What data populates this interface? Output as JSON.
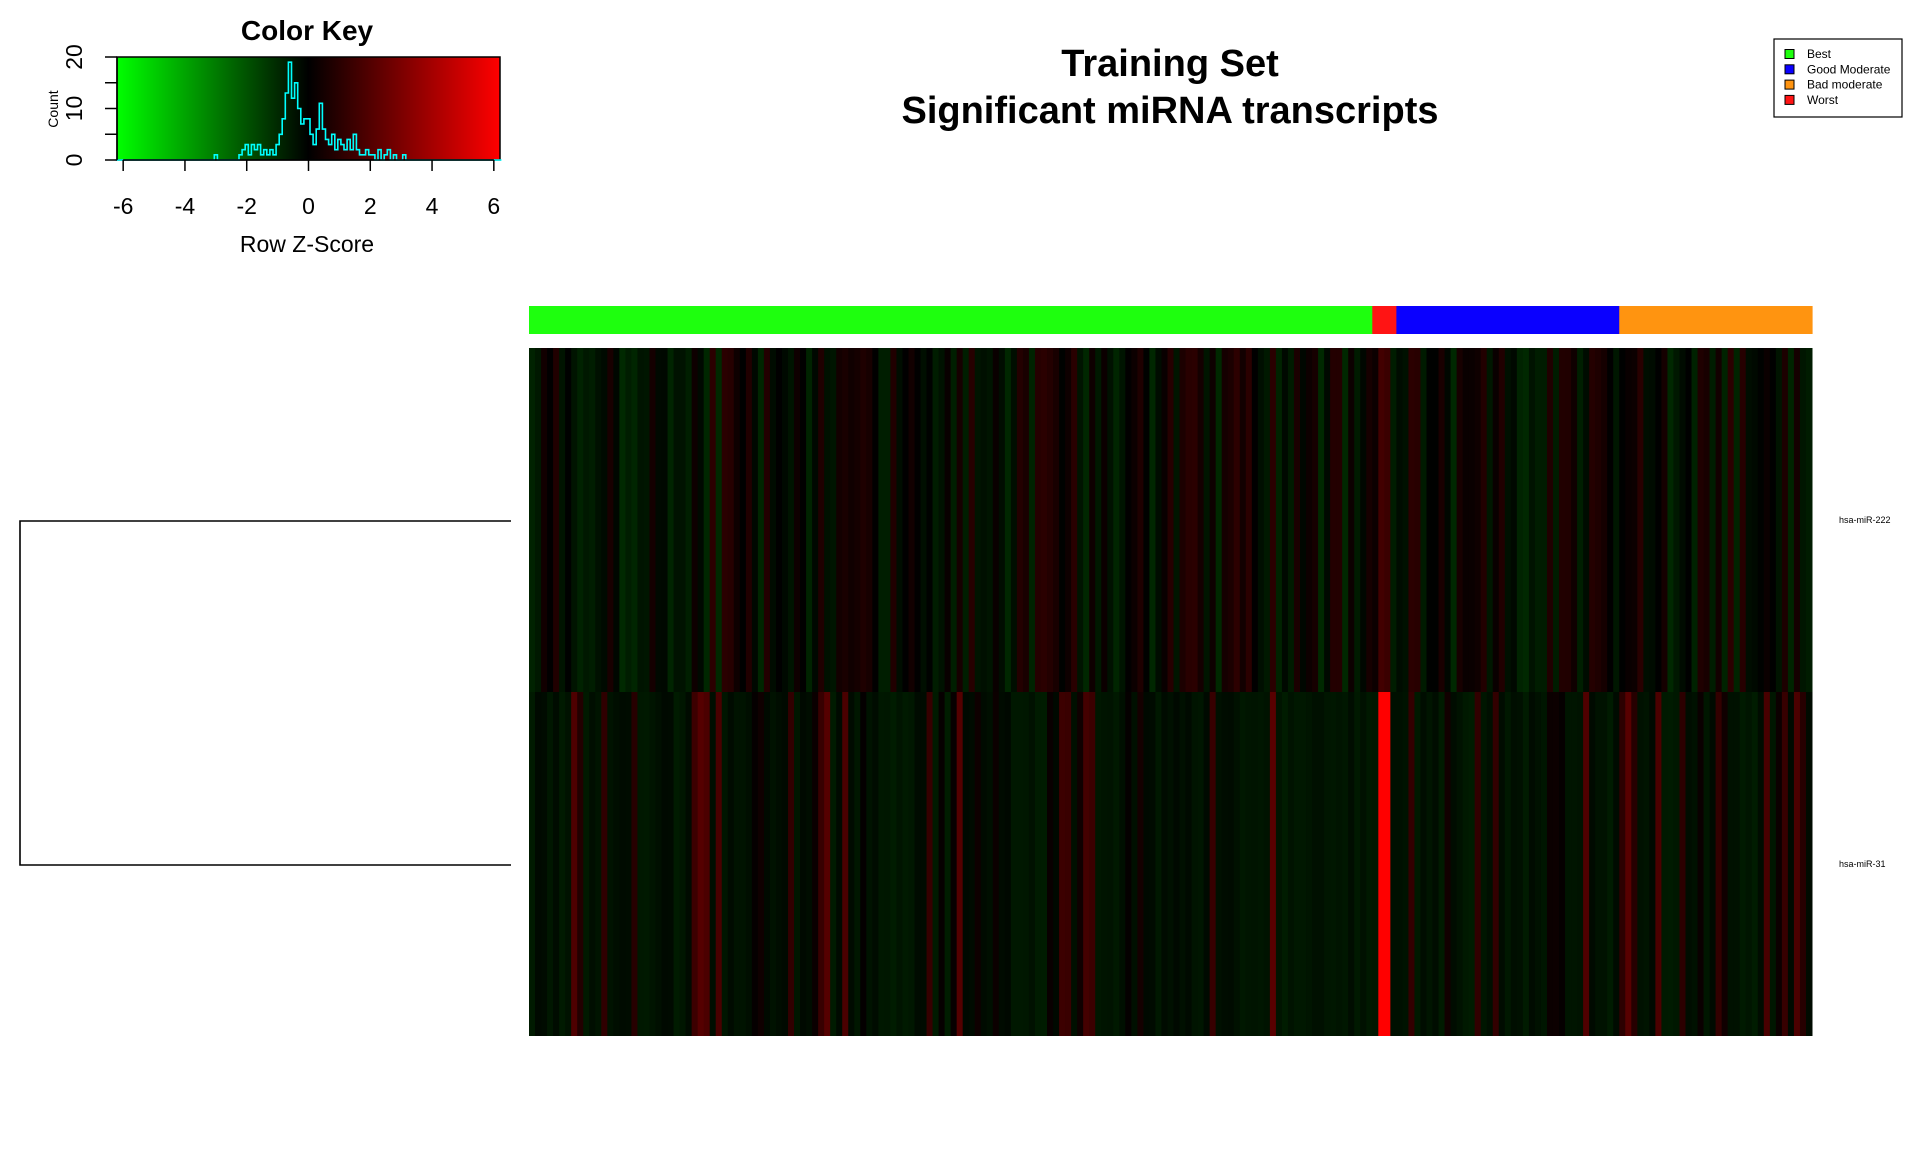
{
  "chart_data": {
    "type": "heatmap",
    "title_line1": "Training Set",
    "title_line2": "Significant miRNA transcripts",
    "rows": [
      "hsa-miR-222",
      "hsa-miR-31"
    ],
    "column_groups": [
      {
        "name": "Best",
        "n": 140,
        "color": "#1EFF0E"
      },
      {
        "name": "Worst",
        "n": 4,
        "color": "#FF1414"
      },
      {
        "name": "Good Moderate",
        "n": 37,
        "color": "#0A00FF"
      },
      {
        "name": "Bad moderate",
        "n": 32,
        "color": "#FF9410"
      }
    ],
    "legend": [
      {
        "label": "Best",
        "color": "#1EFF0E"
      },
      {
        "label": "Good Moderate",
        "color": "#0A00FF"
      },
      {
        "label": "Bad moderate",
        "color": "#FF9410"
      },
      {
        "label": "Worst",
        "color": "#FF1414"
      }
    ],
    "legend_position": "top-right",
    "z_range": [
      -6.2,
      6.2
    ],
    "color_scale": [
      "#00FF00",
      "#000000",
      "#FF0000"
    ],
    "color_key": {
      "title": "Color Key",
      "xlabel": "Row Z-Score",
      "ylabel": "Count",
      "x_ticks": [
        -6,
        -4,
        -2,
        0,
        2,
        4,
        6
      ],
      "y_ticks": [
        0,
        10,
        20
      ],
      "histogram_color": "#00FFFF",
      "histogram": [
        {
          "x": -3.0,
          "count": 1
        },
        {
          "x": -2.2,
          "count": 1
        },
        {
          "x": -2.1,
          "count": 2
        },
        {
          "x": -2.0,
          "count": 3
        },
        {
          "x": -1.9,
          "count": 1
        },
        {
          "x": -1.8,
          "count": 3
        },
        {
          "x": -1.7,
          "count": 2
        },
        {
          "x": -1.6,
          "count": 3
        },
        {
          "x": -1.5,
          "count": 1
        },
        {
          "x": -1.4,
          "count": 2
        },
        {
          "x": -1.3,
          "count": 1
        },
        {
          "x": -1.2,
          "count": 2
        },
        {
          "x": -1.1,
          "count": 1
        },
        {
          "x": -1.0,
          "count": 3
        },
        {
          "x": -0.9,
          "count": 5
        },
        {
          "x": -0.8,
          "count": 8
        },
        {
          "x": -0.7,
          "count": 13
        },
        {
          "x": -0.6,
          "count": 19
        },
        {
          "x": -0.5,
          "count": 12
        },
        {
          "x": -0.4,
          "count": 15
        },
        {
          "x": -0.3,
          "count": 10
        },
        {
          "x": -0.2,
          "count": 7
        },
        {
          "x": -0.1,
          "count": 8
        },
        {
          "x": 0.0,
          "count": 8
        },
        {
          "x": 0.1,
          "count": 5
        },
        {
          "x": 0.2,
          "count": 3
        },
        {
          "x": 0.3,
          "count": 6
        },
        {
          "x": 0.4,
          "count": 11
        },
        {
          "x": 0.5,
          "count": 6
        },
        {
          "x": 0.6,
          "count": 4
        },
        {
          "x": 0.7,
          "count": 3
        },
        {
          "x": 0.8,
          "count": 5
        },
        {
          "x": 0.9,
          "count": 2
        },
        {
          "x": 1.0,
          "count": 4
        },
        {
          "x": 1.1,
          "count": 3
        },
        {
          "x": 1.2,
          "count": 2
        },
        {
          "x": 1.3,
          "count": 4
        },
        {
          "x": 1.4,
          "count": 2
        },
        {
          "x": 1.5,
          "count": 5
        },
        {
          "x": 1.6,
          "count": 2
        },
        {
          "x": 1.7,
          "count": 1
        },
        {
          "x": 1.8,
          "count": 1
        },
        {
          "x": 1.9,
          "count": 2
        },
        {
          "x": 2.0,
          "count": 1
        },
        {
          "x": 2.1,
          "count": 1
        },
        {
          "x": 2.3,
          "count": 2
        },
        {
          "x": 2.5,
          "count": 1
        },
        {
          "x": 2.6,
          "count": 2
        },
        {
          "x": 2.8,
          "count": 1
        },
        {
          "x": 3.1,
          "count": 1
        }
      ]
    },
    "row_dendrogram": true
  }
}
